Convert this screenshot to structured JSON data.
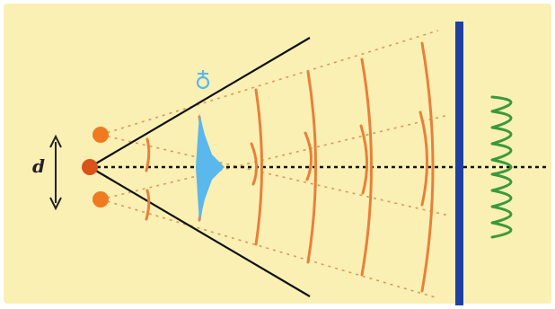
{
  "labels": {
    "separation": "d"
  },
  "colors": {
    "background": "#faf0b4",
    "wavefront": "#e8803a",
    "ray": "#d99a5a",
    "axis": "#111111",
    "cone": "#111111",
    "lens": "#5ab8ec",
    "lens_icon": "#5ab8ec",
    "screen": "#1f3fa3",
    "pattern": "#3a9a3a",
    "source": "#f07a20",
    "source_core": "#d9531a",
    "arrow": "#222222"
  },
  "icons": {
    "sources": "star-burst-icon",
    "eye": "eye-icon"
  }
}
